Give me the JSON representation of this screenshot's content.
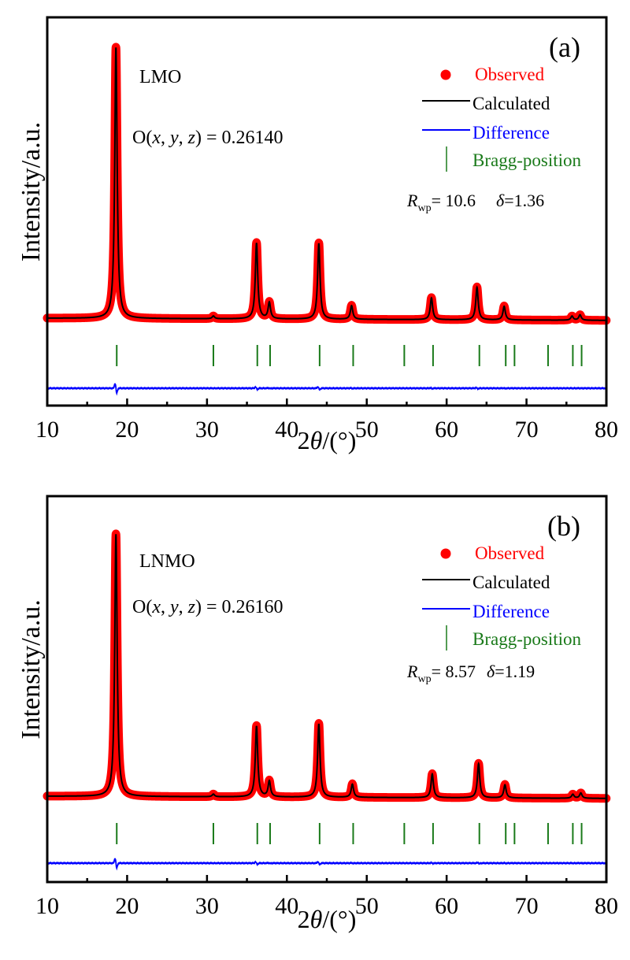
{
  "chart_data": [
    {
      "type": "line",
      "panel_label": "(a)",
      "sample": "LMO",
      "annotation": "O(x, y, z) = 0.26140",
      "annotation_parts": {
        "prefix": "O(",
        "x": "x",
        "y": "y",
        "z": "z",
        "suffix": ") = 0.26140"
      },
      "stats": {
        "rwp_label": "R",
        "rwp_sub": "wp",
        "rwp_value": "= 10.6",
        "delta_label": "δ",
        "delta_value": "=1.36"
      },
      "xlabel": "2θ/(°)",
      "ylabel": "Intensity/a.u.",
      "xlim": [
        10,
        80
      ],
      "xticks": [
        10,
        20,
        30,
        40,
        50,
        60,
        70,
        80
      ],
      "legend": [
        {
          "label": "Observed",
          "color": "#ff0000",
          "marker": "dot"
        },
        {
          "label": "Calculated",
          "color": "#000000",
          "marker": "line"
        },
        {
          "label": "Difference",
          "color": "#0000ff",
          "marker": "line"
        },
        {
          "label": "Bragg-position",
          "color": "#1a7a1a",
          "marker": "vbar"
        }
      ],
      "legend_position": "top-right",
      "peaks": [
        {
          "x": 18.6,
          "rel_intensity": 1.0
        },
        {
          "x": 30.8,
          "rel_intensity": 0.01
        },
        {
          "x": 36.2,
          "rel_intensity": 0.28
        },
        {
          "x": 37.8,
          "rel_intensity": 0.06
        },
        {
          "x": 44.0,
          "rel_intensity": 0.28
        },
        {
          "x": 48.1,
          "rel_intensity": 0.05
        },
        {
          "x": 58.1,
          "rel_intensity": 0.08
        },
        {
          "x": 63.8,
          "rel_intensity": 0.12
        },
        {
          "x": 67.2,
          "rel_intensity": 0.05
        },
        {
          "x": 75.7,
          "rel_intensity": 0.015
        },
        {
          "x": 76.7,
          "rel_intensity": 0.02
        }
      ],
      "bragg_positions": [
        18.7,
        30.8,
        36.3,
        37.9,
        44.1,
        48.3,
        54.7,
        58.3,
        64.1,
        67.4,
        68.5,
        72.7,
        75.8,
        76.9
      ]
    },
    {
      "type": "line",
      "panel_label": "(b)",
      "sample": "LNMO",
      "annotation": "O(x, y, z) = 0.26160",
      "annotation_parts": {
        "prefix": "O(",
        "x": "x",
        "y": "y",
        "z": "z",
        "suffix": ") = 0.26160"
      },
      "stats": {
        "rwp_label": "R",
        "rwp_sub": "wp",
        "rwp_value": "= 8.57",
        "delta_label": "δ",
        "delta_value": "=1.19"
      },
      "xlabel": "2θ/(°)",
      "ylabel": "Intensity/a.u.",
      "xlim": [
        10,
        80
      ],
      "xticks": [
        10,
        20,
        30,
        40,
        50,
        60,
        70,
        80
      ],
      "legend": [
        {
          "label": "Observed",
          "color": "#ff0000",
          "marker": "dot"
        },
        {
          "label": "Calculated",
          "color": "#000000",
          "marker": "line"
        },
        {
          "label": "Difference",
          "color": "#0000ff",
          "marker": "line"
        },
        {
          "label": "Bragg-position",
          "color": "#1a7a1a",
          "marker": "vbar"
        }
      ],
      "legend_position": "top-right",
      "peaks": [
        {
          "x": 18.6,
          "rel_intensity": 1.0
        },
        {
          "x": 30.8,
          "rel_intensity": 0.01
        },
        {
          "x": 36.2,
          "rel_intensity": 0.27
        },
        {
          "x": 37.8,
          "rel_intensity": 0.06
        },
        {
          "x": 44.0,
          "rel_intensity": 0.28
        },
        {
          "x": 48.2,
          "rel_intensity": 0.05
        },
        {
          "x": 58.2,
          "rel_intensity": 0.09
        },
        {
          "x": 64.0,
          "rel_intensity": 0.13
        },
        {
          "x": 67.3,
          "rel_intensity": 0.05
        },
        {
          "x": 75.8,
          "rel_intensity": 0.015
        },
        {
          "x": 76.8,
          "rel_intensity": 0.02
        }
      ],
      "bragg_positions": [
        18.7,
        30.8,
        36.3,
        37.9,
        44.1,
        48.3,
        54.7,
        58.3,
        64.1,
        67.4,
        68.5,
        72.7,
        75.8,
        76.9
      ]
    }
  ]
}
